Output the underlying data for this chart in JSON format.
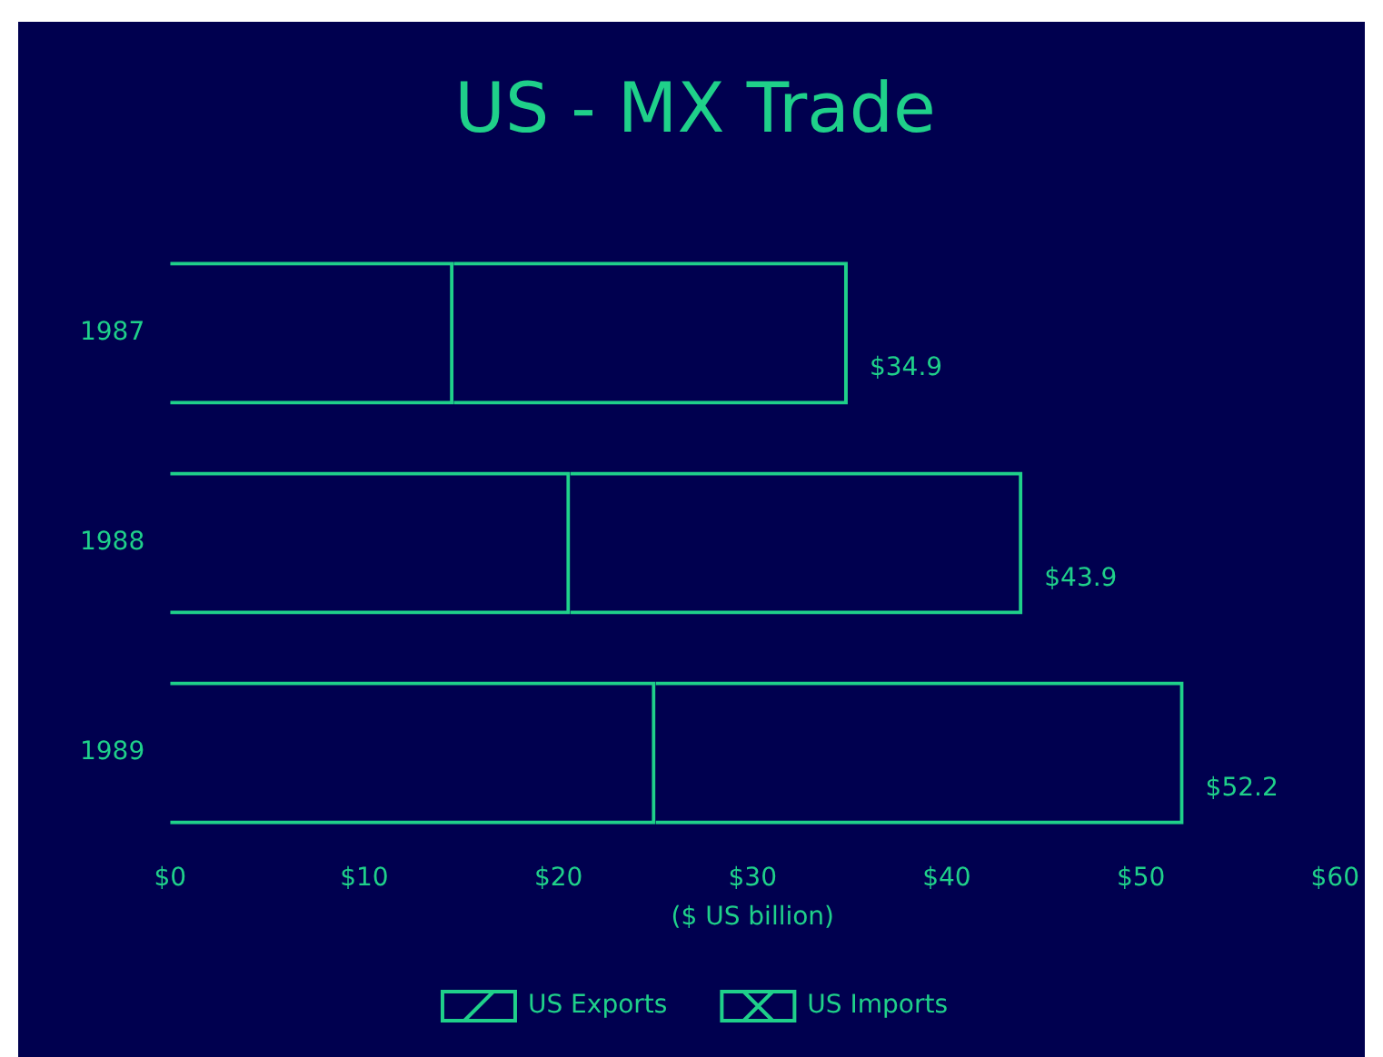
{
  "chart_data": {
    "type": "bar",
    "orientation": "horizontal",
    "stacked": true,
    "title": "US - MX Trade",
    "xlabel": "($ US billion)",
    "categories": [
      "1987",
      "1988",
      "1989"
    ],
    "series": [
      {
        "name": "US Exports",
        "color": "#1fd08a",
        "values": [
          14.6,
          20.6,
          25.0
        ]
      },
      {
        "name": "US Imports",
        "color": "#1fd08a",
        "values": [
          20.3,
          23.3,
          27.2
        ]
      }
    ],
    "totals": [
      "$34.9",
      "$43.9",
      "$52.2"
    ],
    "xlim": [
      0,
      60
    ],
    "xticks": [
      {
        "value": 0,
        "label": "$0"
      },
      {
        "value": 10,
        "label": "$10"
      },
      {
        "value": 20,
        "label": "$20"
      },
      {
        "value": 30,
        "label": "$30"
      },
      {
        "value": 40,
        "label": "$40"
      },
      {
        "value": 50,
        "label": "$50"
      },
      {
        "value": 60,
        "label": "$60"
      }
    ],
    "grid": false,
    "legend": "bottom"
  }
}
